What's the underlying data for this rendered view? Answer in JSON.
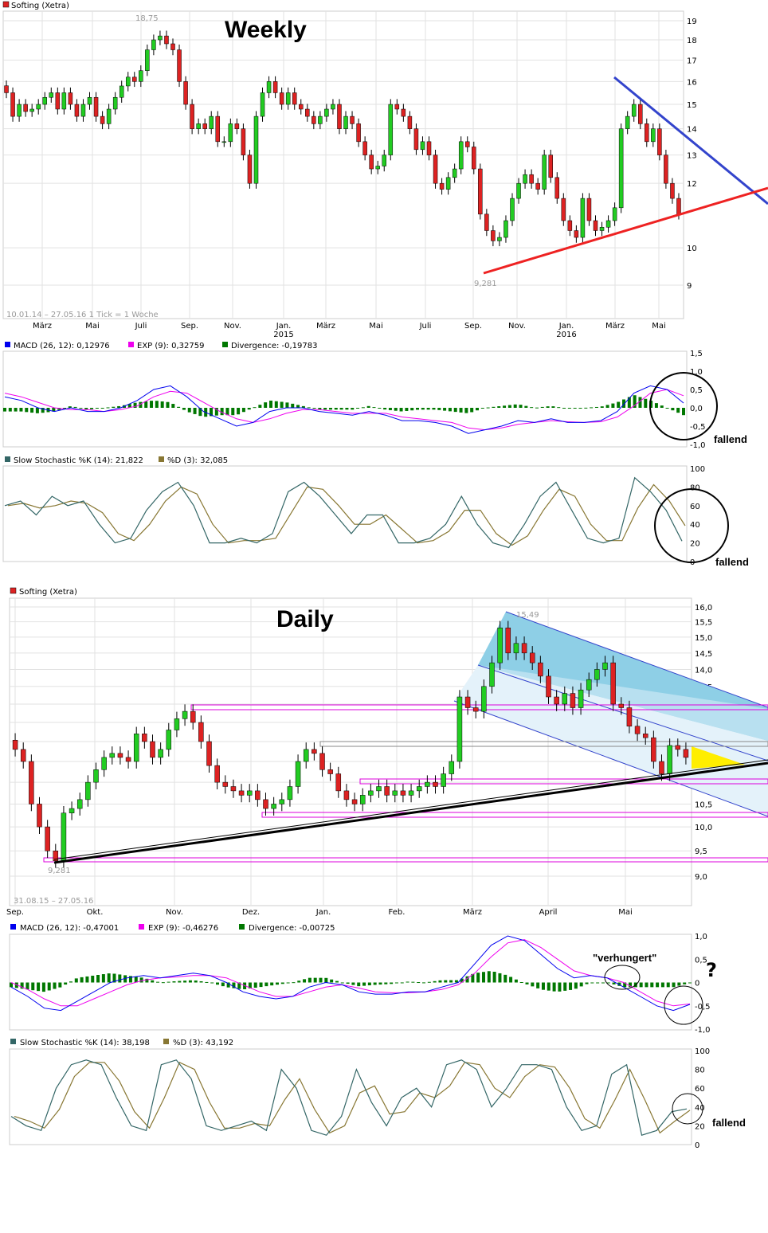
{
  "colors": {
    "up": "#22cc22",
    "down": "#dd2222",
    "macd": "#0000ee",
    "exp": "#ee00ee",
    "divergence": "#007700",
    "stochK": "#336666",
    "stochD": "#887733"
  },
  "weekly": {
    "title": "Weekly",
    "legend": "Softing (Xetra)",
    "range_info": "10.01.14 – 27.05.16   1 Tick = 1 Woche",
    "high_label": "18,75",
    "low_label": "9,281",
    "y_ticks": [
      "19",
      "18",
      "17",
      "16",
      "15",
      "14",
      "13",
      "12",
      "10",
      "9"
    ],
    "months": [
      "März",
      "Mai",
      "Juli",
      "Sep.",
      "Nov.",
      "Jan.\n2015",
      "März",
      "Mai",
      "Juli",
      "Sep.",
      "Nov.",
      "Jan.\n2016",
      "März",
      "Mai"
    ],
    "macd_legend": {
      "macd": "MACD (26, 12): 0,12976",
      "exp": "EXP (9): 0,32759",
      "div": "Divergence: -0,19783"
    },
    "macd_ticks": [
      "1,5",
      "1,0",
      "0,5",
      "0,0",
      "-0,5",
      "-1,0"
    ],
    "stoch_legend": {
      "k": "Slow Stochastic %K (14): 21,822",
      "d": "%D (3): 32,085"
    },
    "stoch_ticks": [
      "100",
      "80",
      "60",
      "40",
      "20",
      "0"
    ],
    "macd_note": "fallend",
    "stoch_note": "fallend"
  },
  "daily": {
    "title": "Daily",
    "legend": "Softing (Xetra)",
    "range_info": "31.08.15 – 27.05.16",
    "high_label": "15,49",
    "low_label": "9,281",
    "y_ticks": [
      "16,0",
      "15,5",
      "15,0",
      "14,5",
      "14,0",
      "13,5",
      "13,0",
      "12,5",
      "12,0",
      "11,5",
      "11,0",
      "10,5",
      "10,0",
      "9,5",
      "9,0"
    ],
    "months": [
      "Sep.",
      "Okt.",
      "Nov.",
      "Dez.",
      "Jan.",
      "Feb.",
      "März",
      "April",
      "Mai"
    ],
    "macd_legend": {
      "macd": "MACD (26, 12): -0,47001",
      "exp": "EXP (9): -0,46276",
      "div": "Divergence: -0,00725"
    },
    "macd_ticks": [
      "1,0",
      "0,5",
      "0",
      "-0,5",
      "-1,0"
    ],
    "stoch_legend": {
      "k": "Slow Stochastic %K (14): 38,198",
      "d": "%D (3): 43,192"
    },
    "stoch_ticks": [
      "100",
      "80",
      "60",
      "40",
      "20",
      "0"
    ],
    "macd_note": "\"verhungert\"",
    "macd_question": "?",
    "stoch_note": "fallend"
  },
  "chart_data": [
    {
      "type": "candlestick",
      "name": "weekly",
      "ylim": [
        9,
        19
      ],
      "scale": "log",
      "closes": [
        15.5,
        14.5,
        15.0,
        14.7,
        14.8,
        15.0,
        15.3,
        15.5,
        14.8,
        15.5,
        15.0,
        14.5,
        15.0,
        15.3,
        14.5,
        14.2,
        14.8,
        15.3,
        15.8,
        16.2,
        16.0,
        16.5,
        17.5,
        18.0,
        18.2,
        17.8,
        17.5,
        16.0,
        15.0,
        14.0,
        14.2,
        14.0,
        14.5,
        13.5,
        13.5,
        14.2,
        14.0,
        13.0,
        12.0,
        14.5,
        15.5,
        16.0,
        15.5,
        15.0,
        15.5,
        15.0,
        14.8,
        14.5,
        14.2,
        14.5,
        14.8,
        15.0,
        14.0,
        14.5,
        14.2,
        13.5,
        13.0,
        12.5,
        12.6,
        13.0,
        15.0,
        14.8,
        14.5,
        14.0,
        13.2,
        13.5,
        13.0,
        12.0,
        11.8,
        12.2,
        12.5,
        13.5,
        13.3,
        12.5,
        11.0,
        10.5,
        10.2,
        10.3,
        10.8,
        11.5,
        12.0,
        12.3,
        12.0,
        11.8,
        13.0,
        12.2,
        11.5,
        10.8,
        10.5,
        10.3,
        11.5,
        10.8,
        10.5,
        10.6,
        10.8,
        11.2,
        14.0,
        14.5,
        15.0,
        14.2,
        13.5,
        14.0,
        13.0,
        12.0,
        11.5,
        11.0
      ]
    },
    {
      "type": "line",
      "name": "weekly-macd",
      "ylim": [
        -1,
        1.5
      ],
      "macd": [
        0.3,
        0.2,
        0.0,
        -0.1,
        0.0,
        -0.1,
        -0.1,
        0.0,
        0.2,
        0.5,
        0.6,
        0.3,
        -0.1,
        -0.3,
        -0.5,
        -0.4,
        -0.1,
        0.0,
        0.0,
        -0.1,
        -0.15,
        -0.2,
        -0.1,
        -0.2,
        -0.35,
        -0.35,
        -0.4,
        -0.5,
        -0.7,
        -0.6,
        -0.5,
        -0.35,
        -0.4,
        -0.3,
        -0.4,
        -0.4,
        -0.35,
        -0.1,
        0.4,
        0.6,
        0.5,
        0.13
      ],
      "exp": [
        0.4,
        0.3,
        0.15,
        0.0,
        -0.05,
        -0.05,
        -0.1,
        -0.05,
        0.05,
        0.3,
        0.45,
        0.4,
        0.15,
        -0.1,
        -0.3,
        -0.4,
        -0.3,
        -0.15,
        -0.05,
        -0.05,
        -0.1,
        -0.15,
        -0.15,
        -0.15,
        -0.25,
        -0.3,
        -0.35,
        -0.4,
        -0.55,
        -0.6,
        -0.55,
        -0.45,
        -0.4,
        -0.35,
        -0.38,
        -0.4,
        -0.38,
        -0.25,
        0.05,
        0.4,
        0.5,
        0.33
      ]
    },
    {
      "type": "line",
      "name": "weekly-stoch",
      "ylim": [
        0,
        100
      ],
      "k": [
        60,
        65,
        50,
        70,
        60,
        65,
        40,
        20,
        25,
        55,
        75,
        85,
        60,
        20,
        20,
        25,
        20,
        30,
        75,
        85,
        70,
        50,
        30,
        50,
        50,
        20,
        20,
        25,
        40,
        70,
        40,
        20,
        15,
        40,
        70,
        85,
        55,
        25,
        20,
        25,
        90,
        75,
        55,
        22
      ]
    },
    {
      "type": "candlestick",
      "name": "daily",
      "ylim": [
        9,
        16
      ],
      "scale": "log",
      "closes": [
        11.8,
        11.5,
        10.5,
        10.0,
        9.5,
        9.3,
        10.3,
        10.4,
        10.6,
        11.0,
        11.3,
        11.6,
        11.7,
        11.6,
        11.5,
        12.2,
        12.0,
        11.6,
        11.8,
        12.3,
        12.6,
        12.8,
        12.5,
        12.0,
        11.4,
        11.0,
        10.9,
        10.8,
        10.7,
        10.8,
        10.6,
        10.4,
        10.5,
        10.6,
        10.9,
        11.5,
        11.8,
        11.7,
        11.3,
        11.2,
        10.8,
        10.6,
        10.5,
        10.7,
        10.8,
        10.9,
        10.7,
        10.8,
        10.7,
        10.8,
        10.9,
        11.0,
        10.9,
        11.2,
        11.5,
        13.2,
        12.9,
        12.8,
        13.5,
        14.2,
        15.3,
        14.5,
        14.8,
        14.5,
        14.2,
        13.8,
        13.2,
        13.0,
        13.3,
        12.9,
        13.4,
        13.7,
        14.0,
        14.2,
        13.0,
        12.9,
        12.4,
        12.2,
        12.1,
        11.5,
        11.2,
        11.9,
        11.8,
        11.6
      ]
    },
    {
      "type": "line",
      "name": "daily-macd",
      "ylim": [
        -1,
        1
      ],
      "macd": [
        -0.1,
        -0.3,
        -0.55,
        -0.6,
        -0.4,
        -0.2,
        0.0,
        0.1,
        0.15,
        0.1,
        0.15,
        0.2,
        0.15,
        0.0,
        -0.2,
        -0.3,
        -0.35,
        -0.3,
        -0.1,
        0.0,
        -0.05,
        -0.2,
        -0.25,
        -0.25,
        -0.2,
        -0.2,
        -0.1,
        0.0,
        0.4,
        0.8,
        1.0,
        0.9,
        0.6,
        0.3,
        0.1,
        0.15,
        0.1,
        -0.1,
        -0.3,
        -0.5,
        -0.6,
        -0.47
      ],
      "exp": [
        0.0,
        -0.15,
        -0.35,
        -0.5,
        -0.5,
        -0.35,
        -0.2,
        -0.05,
        0.05,
        0.1,
        0.12,
        0.15,
        0.15,
        0.1,
        -0.05,
        -0.2,
        -0.3,
        -0.3,
        -0.2,
        -0.1,
        -0.05,
        -0.12,
        -0.2,
        -0.22,
        -0.22,
        -0.2,
        -0.15,
        -0.05,
        0.2,
        0.55,
        0.85,
        0.92,
        0.75,
        0.5,
        0.25,
        0.15,
        0.1,
        0.0,
        -0.2,
        -0.4,
        -0.5,
        -0.46
      ]
    },
    {
      "type": "line",
      "name": "daily-stoch",
      "ylim": [
        0,
        100
      ],
      "k": [
        30,
        20,
        15,
        60,
        85,
        90,
        85,
        50,
        20,
        15,
        85,
        90,
        70,
        20,
        15,
        20,
        25,
        15,
        80,
        60,
        15,
        10,
        30,
        80,
        45,
        20,
        50,
        60,
        40,
        85,
        90,
        80,
        40,
        60,
        85,
        85,
        80,
        40,
        15,
        20,
        75,
        85,
        10,
        15,
        35,
        38
      ]
    }
  ]
}
